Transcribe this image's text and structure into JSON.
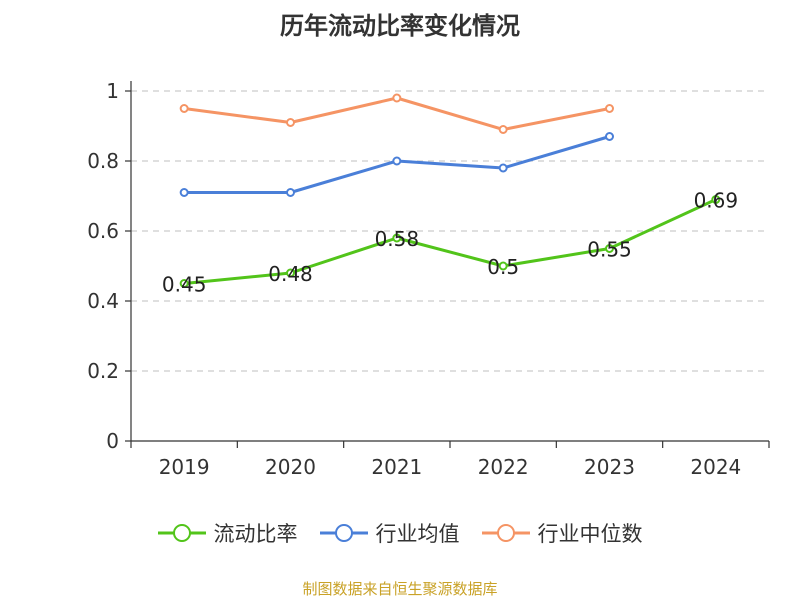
{
  "title": "历年流动比率变化情况",
  "source": "制图数据来自恒生聚源数据库",
  "chart_data": {
    "type": "line",
    "title": "历年流动比率变化情况",
    "categories": [
      "2019",
      "2020",
      "2021",
      "2022",
      "2023",
      "2024"
    ],
    "ylim": [
      0,
      1
    ],
    "yticks": [
      0,
      0.2,
      0.4,
      0.6,
      0.8,
      1
    ],
    "ytick_labels": [
      "0",
      "0.2",
      "0.4",
      "0.6",
      "0.8",
      "1"
    ],
    "grid": true,
    "legend_position": "bottom",
    "series": [
      {
        "name": "流动比率",
        "color": "#52c41a",
        "values": [
          0.45,
          0.48,
          0.58,
          0.5,
          0.55,
          0.69
        ],
        "labels": [
          "0.45",
          "0.48",
          "0.58",
          "0.5",
          "0.55",
          "0.69"
        ]
      },
      {
        "name": "行业均值",
        "color": "#4a7fd8",
        "values": [
          0.71,
          0.71,
          0.8,
          0.78,
          0.87,
          null
        ]
      },
      {
        "name": "行业中位数",
        "color": "#f59464",
        "values": [
          0.95,
          0.91,
          0.98,
          0.89,
          0.95,
          null
        ]
      }
    ]
  }
}
